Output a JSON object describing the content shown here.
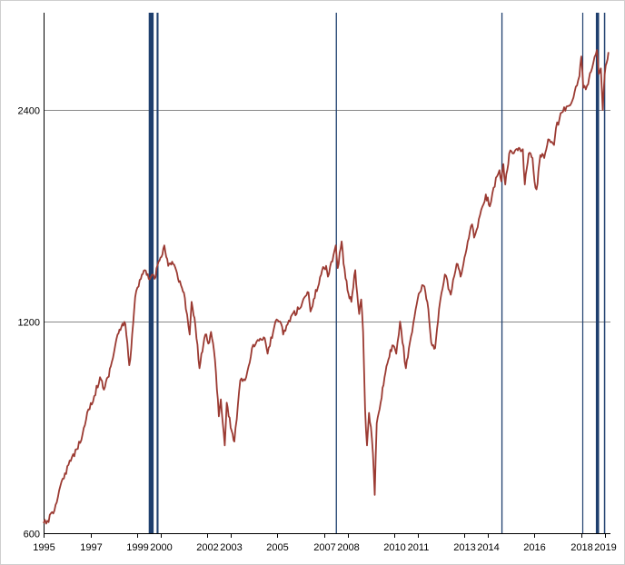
{
  "chart_data": {
    "type": "line",
    "title": "",
    "xlabel": "",
    "ylabel": "",
    "y_scale": "log",
    "ylim": [
      600,
      3300
    ],
    "xlim": [
      "1995-01-01",
      "2019-04-01"
    ],
    "grid": {
      "horizontal": true,
      "vertical": false
    },
    "legend": "none",
    "colors": {
      "line": "#9b3a32",
      "bands": "#1f3f6e",
      "grid": "#888888",
      "axis": "#000000"
    },
    "y_ticks": [
      {
        "value": 600,
        "label": "600"
      },
      {
        "value": 1200,
        "label": "1200"
      },
      {
        "value": 2400,
        "label": "2400"
      }
    ],
    "x_ticks": [
      {
        "value": "1995-01-01",
        "label": "1995"
      },
      {
        "value": "1997-01-01",
        "label": "1997"
      },
      {
        "value": "1999-01-01",
        "label": "1999"
      },
      {
        "value": "2000-01-01",
        "label": "2000"
      },
      {
        "value": "2002-01-01",
        "label": "2002"
      },
      {
        "value": "2003-01-01",
        "label": "2003"
      },
      {
        "value": "2005-01-01",
        "label": "2005"
      },
      {
        "value": "2007-01-01",
        "label": "2007"
      },
      {
        "value": "2008-01-01",
        "label": "2008"
      },
      {
        "value": "2010-01-01",
        "label": "2010"
      },
      {
        "value": "2011-01-01",
        "label": "2011"
      },
      {
        "value": "2013-01-01",
        "label": "2013"
      },
      {
        "value": "2014-01-01",
        "label": "2014"
      },
      {
        "value": "2016-01-01",
        "label": "2016"
      },
      {
        "value": "2018-01-01",
        "label": "2018"
      },
      {
        "value": "2019-01-01",
        "label": "2019"
      }
    ],
    "bands": [
      {
        "start": "1999-07-01",
        "end": "1999-09-15"
      },
      {
        "start": "1999-11-01",
        "end": "1999-12-01"
      },
      {
        "start": "2007-07-01",
        "end": "2007-07-20"
      },
      {
        "start": "2014-08-01",
        "end": "2014-08-20"
      },
      {
        "start": "2018-01-15",
        "end": "2018-02-01"
      },
      {
        "start": "2018-08-15",
        "end": "2018-10-05"
      },
      {
        "start": "2018-12-20",
        "end": "2019-01-10"
      }
    ],
    "series": [
      {
        "points": [
          [
            "1995-01-01",
            620
          ],
          [
            "1995-03-01",
            625
          ],
          [
            "1995-06-01",
            640
          ],
          [
            "1995-09-01",
            690
          ],
          [
            "1995-12-01",
            730
          ],
          [
            "1996-03-01",
            760
          ],
          [
            "1996-06-01",
            790
          ],
          [
            "1996-09-01",
            830
          ],
          [
            "1996-12-01",
            900
          ],
          [
            "1997-03-01",
            940
          ],
          [
            "1997-06-01",
            1000
          ],
          [
            "1997-08-01",
            960
          ],
          [
            "1997-10-01",
            1000
          ],
          [
            "1997-12-01",
            1050
          ],
          [
            "1998-03-01",
            1150
          ],
          [
            "1998-05-01",
            1180
          ],
          [
            "1998-07-01",
            1190
          ],
          [
            "1998-09-01",
            1040
          ],
          [
            "1998-10-01",
            1100
          ],
          [
            "1998-12-01",
            1300
          ],
          [
            "1999-03-01",
            1380
          ],
          [
            "1999-05-01",
            1420
          ],
          [
            "1999-07-01",
            1380
          ],
          [
            "1999-09-01",
            1400
          ],
          [
            "1999-10-01",
            1380
          ],
          [
            "1999-12-01",
            1460
          ],
          [
            "2000-01-01",
            1480
          ],
          [
            "2000-03-01",
            1540
          ],
          [
            "2000-05-01",
            1440
          ],
          [
            "2000-07-01",
            1460
          ],
          [
            "2000-09-01",
            1420
          ],
          [
            "2000-10-01",
            1380
          ],
          [
            "2000-12-01",
            1340
          ],
          [
            "2001-01-01",
            1320
          ],
          [
            "2001-02-01",
            1250
          ],
          [
            "2001-04-01",
            1150
          ],
          [
            "2001-05-01",
            1280
          ],
          [
            "2001-07-01",
            1180
          ],
          [
            "2001-09-01",
            1030
          ],
          [
            "2001-10-01",
            1080
          ],
          [
            "2001-12-01",
            1150
          ],
          [
            "2002-02-01",
            1120
          ],
          [
            "2002-03-01",
            1160
          ],
          [
            "2002-05-01",
            1060
          ],
          [
            "2002-07-01",
            880
          ],
          [
            "2002-08-01",
            930
          ],
          [
            "2002-10-01",
            800
          ],
          [
            "2002-11-01",
            920
          ],
          [
            "2002-12-01",
            880
          ],
          [
            "2003-02-01",
            830
          ],
          [
            "2003-03-01",
            810
          ],
          [
            "2003-06-01",
            990
          ],
          [
            "2003-09-01",
            1000
          ],
          [
            "2003-12-01",
            1100
          ],
          [
            "2004-03-01",
            1130
          ],
          [
            "2004-06-01",
            1140
          ],
          [
            "2004-08-01",
            1080
          ],
          [
            "2004-12-01",
            1200
          ],
          [
            "2005-03-01",
            1190
          ],
          [
            "2005-04-01",
            1150
          ],
          [
            "2005-08-01",
            1220
          ],
          [
            "2005-12-01",
            1250
          ],
          [
            "2006-03-01",
            1300
          ],
          [
            "2006-05-01",
            1320
          ],
          [
            "2006-06-01",
            1240
          ],
          [
            "2006-12-01",
            1420
          ],
          [
            "2007-02-01",
            1440
          ],
          [
            "2007-03-01",
            1390
          ],
          [
            "2007-07-01",
            1540
          ],
          [
            "2007-08-01",
            1430
          ],
          [
            "2007-10-01",
            1560
          ],
          [
            "2007-11-01",
            1450
          ],
          [
            "2008-01-01",
            1330
          ],
          [
            "2008-03-01",
            1280
          ],
          [
            "2008-05-01",
            1420
          ],
          [
            "2008-07-01",
            1230
          ],
          [
            "2008-08-01",
            1290
          ],
          [
            "2008-09-01",
            1160
          ],
          [
            "2008-10-01",
            900
          ],
          [
            "2008-11-01",
            800
          ],
          [
            "2008-12-01",
            890
          ],
          [
            "2009-01-01",
            850
          ],
          [
            "2009-02-01",
            780
          ],
          [
            "2009-03-01",
            680
          ],
          [
            "2009-04-01",
            860
          ],
          [
            "2009-06-01",
            920
          ],
          [
            "2009-08-01",
            1000
          ],
          [
            "2009-10-01",
            1060
          ],
          [
            "2009-12-01",
            1110
          ],
          [
            "2010-02-01",
            1080
          ],
          [
            "2010-04-01",
            1200
          ],
          [
            "2010-07-01",
            1030
          ],
          [
            "2010-09-01",
            1120
          ],
          [
            "2010-12-01",
            1250
          ],
          [
            "2011-02-01",
            1320
          ],
          [
            "2011-04-01",
            1350
          ],
          [
            "2011-06-01",
            1280
          ],
          [
            "2011-08-01",
            1120
          ],
          [
            "2011-10-01",
            1100
          ],
          [
            "2011-12-01",
            1250
          ],
          [
            "2012-03-01",
            1400
          ],
          [
            "2012-06-01",
            1310
          ],
          [
            "2012-09-01",
            1450
          ],
          [
            "2012-11-01",
            1390
          ],
          [
            "2013-01-01",
            1480
          ],
          [
            "2013-05-01",
            1650
          ],
          [
            "2013-06-01",
            1580
          ],
          [
            "2013-09-01",
            1700
          ],
          [
            "2013-12-01",
            1820
          ],
          [
            "2014-02-01",
            1750
          ],
          [
            "2014-04-01",
            1860
          ],
          [
            "2014-07-01",
            1970
          ],
          [
            "2014-08-01",
            1900
          ],
          [
            "2014-09-01",
            2010
          ],
          [
            "2014-10-01",
            1880
          ],
          [
            "2014-12-01",
            2080
          ],
          [
            "2015-03-01",
            2100
          ],
          [
            "2015-05-01",
            2120
          ],
          [
            "2015-07-01",
            2110
          ],
          [
            "2015-08-01",
            1880
          ],
          [
            "2015-10-01",
            2080
          ],
          [
            "2015-12-01",
            2050
          ],
          [
            "2016-01-01",
            1900
          ],
          [
            "2016-02-01",
            1850
          ],
          [
            "2016-04-01",
            2070
          ],
          [
            "2016-06-01",
            2050
          ],
          [
            "2016-08-01",
            2180
          ],
          [
            "2016-11-01",
            2140
          ],
          [
            "2016-12-01",
            2260
          ],
          [
            "2017-03-01",
            2380
          ],
          [
            "2017-06-01",
            2430
          ],
          [
            "2017-09-01",
            2500
          ],
          [
            "2017-12-01",
            2680
          ],
          [
            "2018-01-01",
            2860
          ],
          [
            "2018-02-01",
            2580
          ],
          [
            "2018-04-01",
            2600
          ],
          [
            "2018-06-01",
            2720
          ],
          [
            "2018-09-01",
            2920
          ],
          [
            "2018-10-01",
            2700
          ],
          [
            "2018-11-01",
            2750
          ],
          [
            "2018-12-01",
            2400
          ],
          [
            "2019-01-01",
            2700
          ],
          [
            "2019-02-01",
            2800
          ],
          [
            "2019-03-01",
            2900
          ]
        ]
      }
    ]
  }
}
